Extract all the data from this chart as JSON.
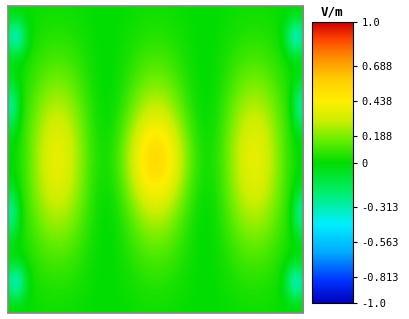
{
  "colorbar_label": "V/m",
  "colorbar_ticks": [
    1.0,
    0.688,
    0.438,
    0.188,
    0,
    -0.313,
    -0.563,
    -0.813,
    -1.0
  ],
  "vmin": -1.0,
  "vmax": 1.0,
  "figsize": [
    4.1,
    3.19
  ],
  "dpi": 100,
  "background_color": "#ffffff",
  "colors_list": [
    [
      0.0,
      "#0000bb"
    ],
    [
      0.08,
      "#0033ff"
    ],
    [
      0.18,
      "#00aaff"
    ],
    [
      0.28,
      "#00eeff"
    ],
    [
      0.4,
      "#00ee66"
    ],
    [
      0.5,
      "#00dd00"
    ],
    [
      0.58,
      "#66ee00"
    ],
    [
      0.65,
      "#ccee00"
    ],
    [
      0.72,
      "#ffee00"
    ],
    [
      0.8,
      "#ffcc00"
    ],
    [
      0.88,
      "#ff8800"
    ],
    [
      0.94,
      "#ff4400"
    ],
    [
      1.0,
      "#cc0000"
    ]
  ]
}
